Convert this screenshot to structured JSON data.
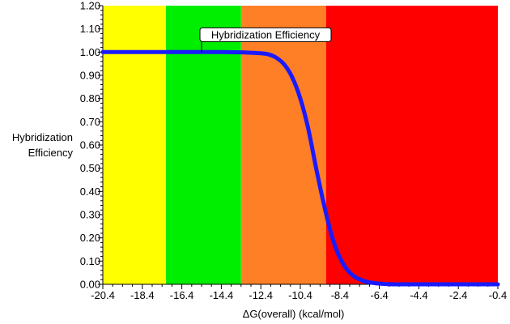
{
  "chart_data": {
    "type": "line",
    "title": "",
    "xlabel": "ΔG(overall) (kcal/mol)",
    "ylabel_lines": [
      "Hybridization",
      "Efficiency"
    ],
    "xlim": [
      -20.4,
      -0.4
    ],
    "ylim": [
      0.0,
      1.2
    ],
    "grid": false,
    "x_ticks": [
      -20.4,
      -18.4,
      -16.4,
      -14.4,
      -12.4,
      -10.4,
      -8.4,
      -6.4,
      -4.4,
      -2.4,
      -0.4
    ],
    "x_tick_labels": [
      "-20.4",
      "-18.4",
      "-16.4",
      "-14.4",
      "-12.4",
      "-10.4",
      "-8.4",
      "-6.4",
      "-4.4",
      "-2.4",
      "-0.4"
    ],
    "y_ticks": [
      0.0,
      0.1,
      0.2,
      0.3,
      0.4,
      0.5,
      0.6,
      0.7,
      0.8,
      0.9,
      1.0,
      1.1,
      1.2
    ],
    "y_tick_labels": [
      "0.00",
      "0.10",
      "0.20",
      "0.30",
      "0.40",
      "0.50",
      "0.60",
      "0.70",
      "0.80",
      "0.90",
      "1.00",
      "1.10",
      "1.20"
    ],
    "bands": [
      {
        "x_from": -20.4,
        "x_to": -17.2,
        "color": "#ffff00"
      },
      {
        "x_from": -17.2,
        "x_to": -13.4,
        "color": "#00ee00"
      },
      {
        "x_from": -13.4,
        "x_to": -9.1,
        "color": "#ff7f27"
      },
      {
        "x_from": -9.1,
        "x_to": -0.4,
        "color": "#ff0000"
      }
    ],
    "series": [
      {
        "name": "Hybridization Efficiency",
        "color": "#1a1aff",
        "x": [
          -20.4,
          -18.4,
          -16.4,
          -14.4,
          -13.4,
          -12.4,
          -12.0,
          -11.6,
          -11.2,
          -10.8,
          -10.4,
          -10.0,
          -9.6,
          -9.3,
          -9.0,
          -8.7,
          -8.4,
          -8.0,
          -7.6,
          -7.2,
          -6.8,
          -6.4,
          -6.0,
          -5.4,
          -4.4,
          -2.4,
          -0.4
        ],
        "y": [
          1.0,
          1.0,
          1.0,
          1.0,
          0.999,
          0.995,
          0.99,
          0.975,
          0.945,
          0.89,
          0.8,
          0.67,
          0.5,
          0.38,
          0.27,
          0.18,
          0.115,
          0.06,
          0.03,
          0.015,
          0.007,
          0.003,
          0.001,
          0.0,
          0.0,
          0.0,
          0.0
        ]
      }
    ],
    "annotation": {
      "text": "Hybridization Efficiency",
      "x": -15.4,
      "y": 1.0
    }
  }
}
